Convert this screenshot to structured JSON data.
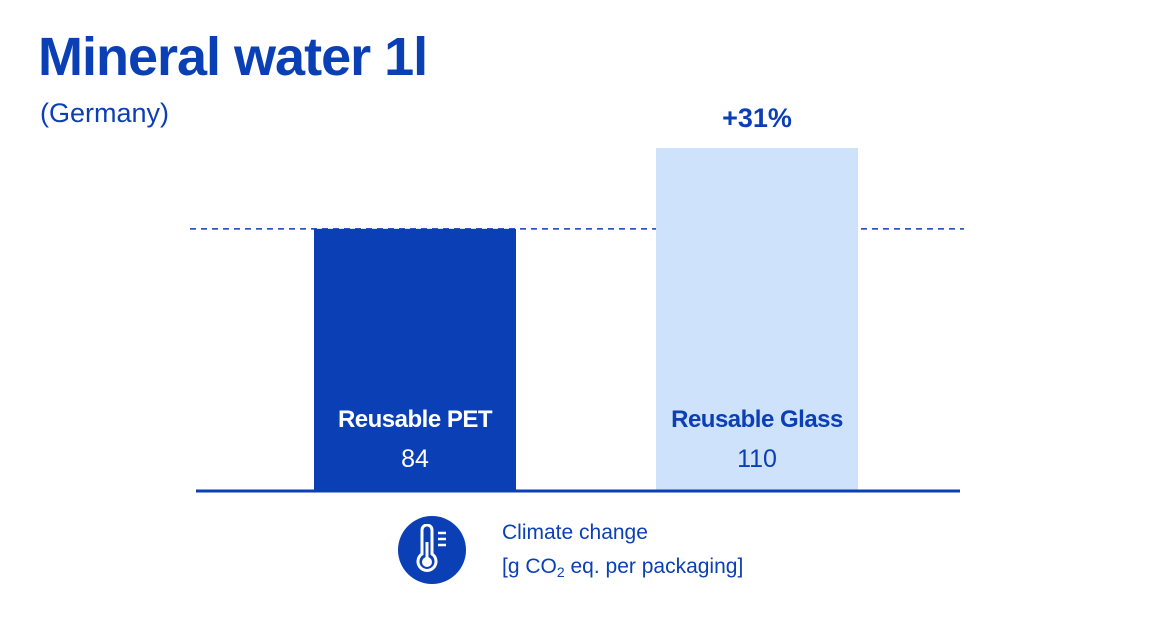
{
  "title": "Mineral water 1l",
  "subtitle": "(Germany)",
  "colors": {
    "accent": "#0a3fb5",
    "light": "#cfe2fb",
    "dark_text": "#ffffff"
  },
  "legend": {
    "icon": "thermometer-icon",
    "line1": "Climate change",
    "line2_pre": "[g CO",
    "line2_sub": "2",
    "line2_post": " eq. per packaging]"
  },
  "chart_data": {
    "type": "bar",
    "categories": [
      "Reusable PET",
      "Reusable Glass"
    ],
    "values": [
      84,
      110
    ],
    "display_values": [
      "84",
      "110"
    ],
    "annotation": "+31%",
    "reference_line": 84,
    "xlabel": "",
    "ylabel": "",
    "grid": false
  }
}
